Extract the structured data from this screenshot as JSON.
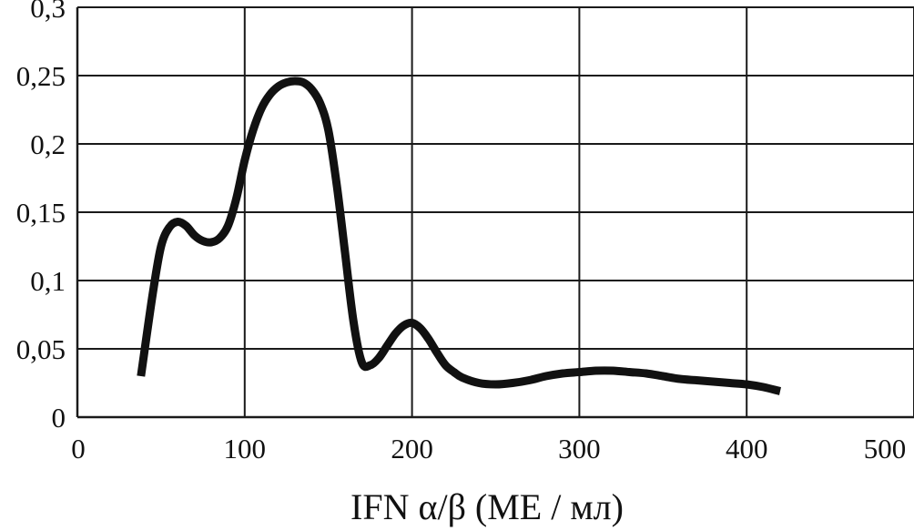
{
  "chart_data": {
    "type": "line",
    "title": "",
    "xlabel": "IFN α/β (МЕ / мл)",
    "ylabel": "",
    "xlim": [
      0,
      500
    ],
    "ylim": [
      0,
      0.3
    ],
    "grid": true,
    "x_ticks": [
      "0",
      "100",
      "200",
      "300",
      "400",
      "500"
    ],
    "y_ticks": [
      "0",
      "0,05",
      "0,1",
      "0,15",
      "0,2",
      "0,25",
      "0,3"
    ],
    "x_tick_values": [
      0,
      100,
      200,
      300,
      400,
      500
    ],
    "y_tick_values": [
      0,
      0.05,
      0.1,
      0.15,
      0.2,
      0.25,
      0.3
    ],
    "series": [
      {
        "x": [
          38,
          45,
          50,
          55,
          60,
          65,
          70,
          75,
          80,
          85,
          90,
          95,
          100,
          105,
          110,
          115,
          120,
          125,
          130,
          135,
          140,
          145,
          150,
          155,
          160,
          165,
          170,
          175,
          180,
          185,
          190,
          195,
          200,
          205,
          210,
          215,
          220,
          225,
          230,
          240,
          250,
          260,
          270,
          280,
          290,
          300,
          310,
          320,
          330,
          340,
          350,
          360,
          370,
          380,
          390,
          400,
          410,
          420
        ],
        "y": [
          0.03,
          0.09,
          0.125,
          0.139,
          0.143,
          0.14,
          0.133,
          0.129,
          0.128,
          0.131,
          0.14,
          0.16,
          0.188,
          0.21,
          0.226,
          0.236,
          0.242,
          0.245,
          0.246,
          0.245,
          0.24,
          0.23,
          0.21,
          0.17,
          0.12,
          0.07,
          0.04,
          0.038,
          0.043,
          0.052,
          0.061,
          0.067,
          0.069,
          0.065,
          0.057,
          0.047,
          0.038,
          0.033,
          0.029,
          0.025,
          0.024,
          0.025,
          0.027,
          0.03,
          0.032,
          0.033,
          0.034,
          0.034,
          0.033,
          0.032,
          0.03,
          0.028,
          0.027,
          0.026,
          0.025,
          0.024,
          0.022,
          0.019
        ]
      }
    ]
  },
  "style": {
    "line_color": "#111111",
    "grid_color": "#1a1a1a",
    "background": "#ffffff"
  }
}
